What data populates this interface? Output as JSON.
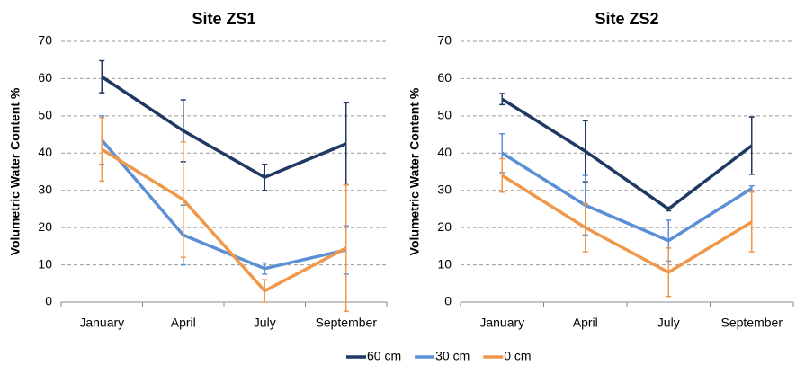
{
  "chart_data": [
    {
      "type": "line",
      "title": "Site ZS1",
      "y_label": "Volumetric Water Content %",
      "categories": [
        "January",
        "April",
        "July",
        "September"
      ],
      "ylim": [
        0,
        70
      ],
      "yticks": [
        0,
        10,
        20,
        30,
        40,
        50,
        60,
        70
      ],
      "grid": true,
      "series": [
        {
          "color": "#1f3864",
          "values": [
            60.5,
            46,
            33.5,
            42.5
          ],
          "errors": [
            4.3,
            8.3,
            3.5,
            11
          ]
        },
        {
          "color": "#5b8fd6",
          "values": [
            43.5,
            18,
            9,
            14
          ],
          "errors": [
            6.5,
            8,
            1.5,
            6.5
          ]
        },
        {
          "color": "#f0974a",
          "values": [
            41,
            27.5,
            3,
            14.5
          ],
          "errors": [
            8.5,
            15.5,
            3,
            17
          ]
        }
      ]
    },
    {
      "type": "line",
      "title": "Site ZS2",
      "y_label": "Volumetric Water Content %",
      "categories": [
        "January",
        "April",
        "July",
        "September"
      ],
      "ylim": [
        0,
        70
      ],
      "yticks": [
        0,
        10,
        20,
        30,
        40,
        50,
        60,
        70
      ],
      "grid": true,
      "series": [
        {
          "color": "#1f3864",
          "values": [
            54.5,
            40.5,
            25,
            42
          ],
          "errors": [
            1.5,
            8.2,
            0.5,
            7.7
          ]
        },
        {
          "color": "#5b8fd6",
          "values": [
            40,
            26,
            16.5,
            30.5
          ],
          "errors": [
            5.2,
            8,
            5.5,
            0.7
          ]
        },
        {
          "color": "#f0974a",
          "values": [
            34,
            20,
            8,
            21.5
          ],
          "errors": [
            4.5,
            6.5,
            6.5,
            8
          ]
        }
      ]
    }
  ],
  "legend": {
    "position": "bottom",
    "items": [
      "60 cm",
      "30 cm",
      "0 cm"
    ]
  }
}
